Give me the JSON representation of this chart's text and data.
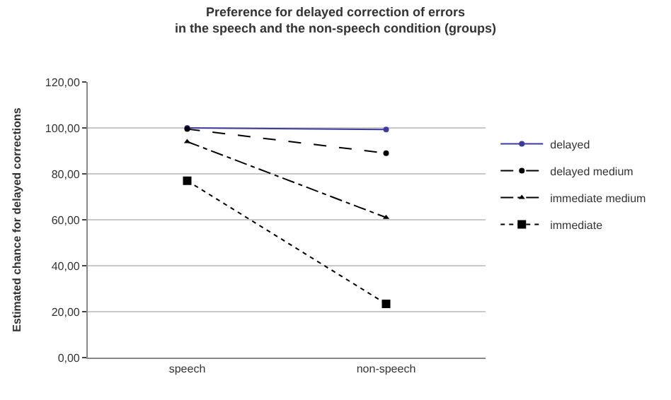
{
  "chart_data": {
    "type": "line",
    "title": "Preference for delayed correction of errors\nin the speech and the non-speech condition (groups)",
    "ylabel": "Estimated chance for delayed corrections",
    "categories": [
      "speech",
      "non-speech"
    ],
    "series": [
      {
        "name": "delayed",
        "color": "#3c3c9c",
        "values": [
          100,
          99.3
        ],
        "marker": "circle",
        "line_style": "solid"
      },
      {
        "name": "delayed medium",
        "color": "#000000",
        "values": [
          99.5,
          89
        ],
        "marker": "circle",
        "line_style": "dashed"
      },
      {
        "name": "immediate medium",
        "color": "#000000",
        "values": [
          94,
          61
        ],
        "marker": "triangle",
        "line_style": "dashdot"
      },
      {
        "name": "immediate",
        "color": "#000000",
        "values": [
          77,
          23.4
        ],
        "marker": "square",
        "line_style": "dotted"
      }
    ],
    "ylim": [
      0,
      120
    ],
    "yticks": [
      {
        "value": 0,
        "label": "0,00"
      },
      {
        "value": 20,
        "label": "20,00"
      },
      {
        "value": 40,
        "label": "40,00"
      },
      {
        "value": 60,
        "label": "60,00"
      },
      {
        "value": 80,
        "label": "80,00"
      },
      {
        "value": 100,
        "label": "100,00"
      },
      {
        "value": 120,
        "label": "120,00"
      }
    ],
    "grid": "y",
    "legend": "right"
  }
}
